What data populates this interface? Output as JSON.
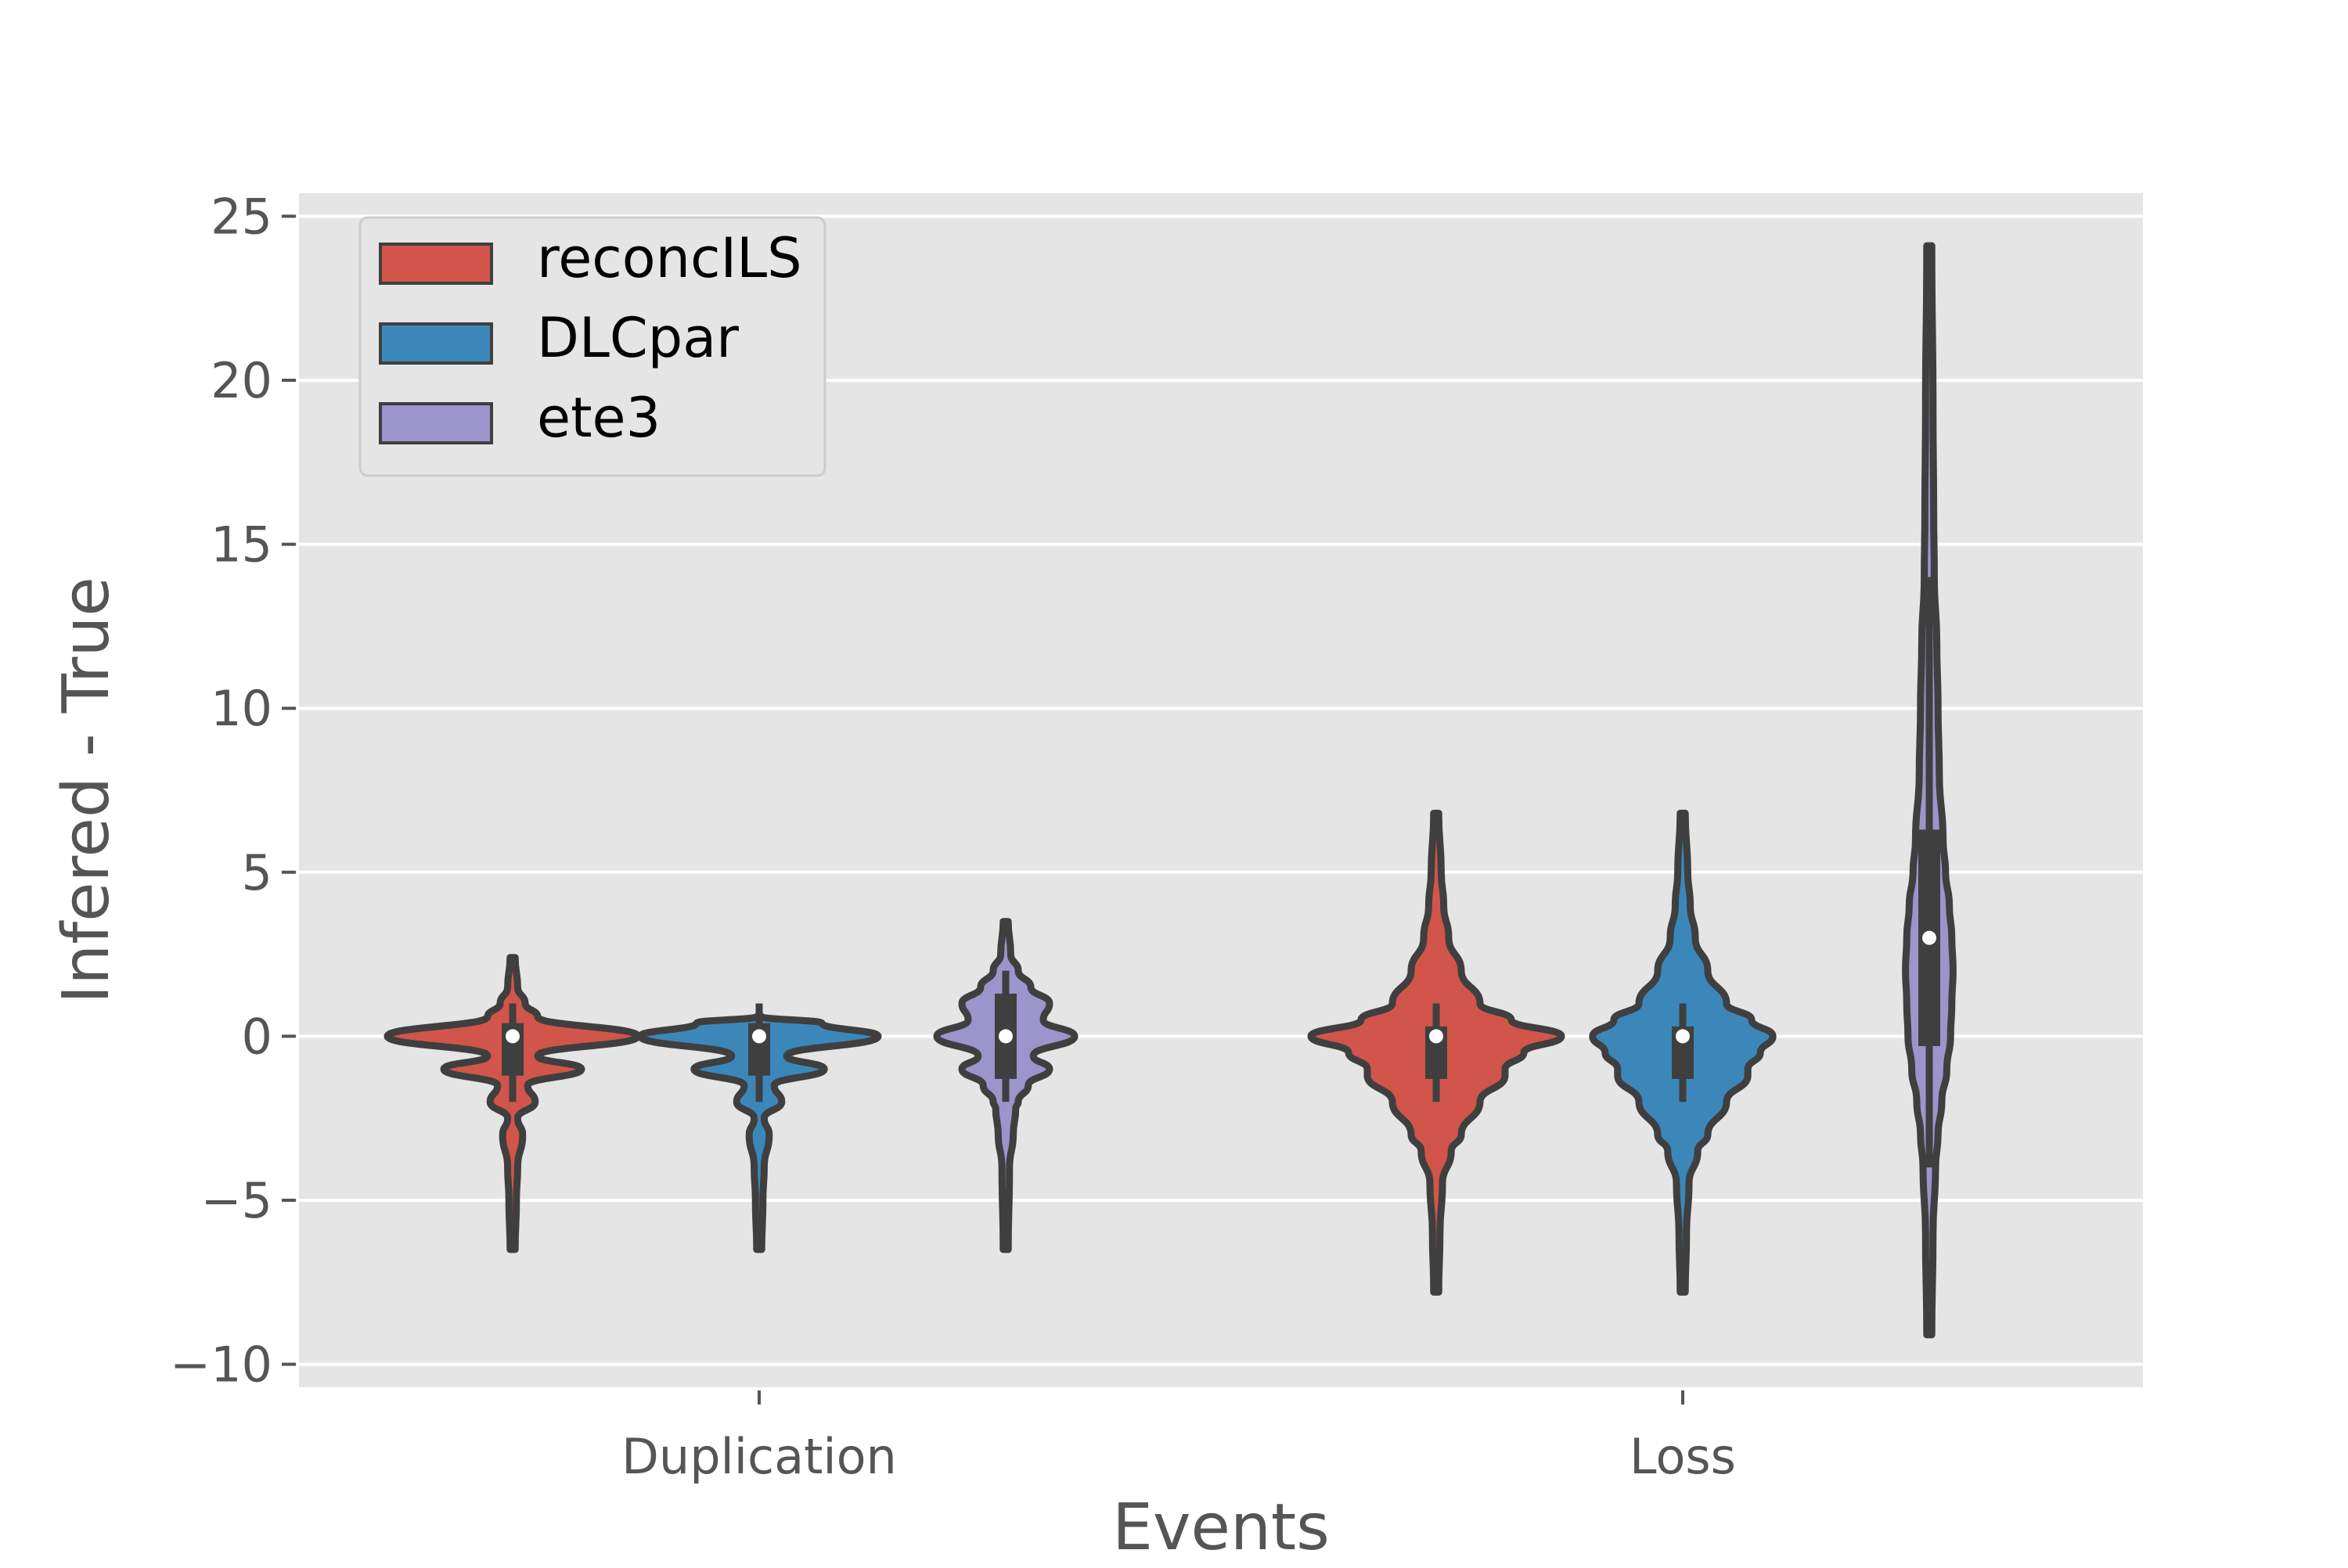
{
  "chart_data": {
    "type": "violin",
    "title": "",
    "xlabel": "Events",
    "ylabel": "Infered - True",
    "categories": [
      "Duplication",
      "Loss"
    ],
    "ylim": [
      -10.7,
      25.7
    ],
    "yticks": [
      25,
      20,
      15,
      10,
      5,
      0,
      -5,
      -10
    ],
    "ytick_labels": [
      "25",
      "20",
      "15",
      "10",
      "5",
      "0",
      "−5",
      "−10"
    ],
    "grid": true,
    "legend_position": "top-left",
    "colors": {
      "background": "#e5e5e5",
      "grid": "#ffffff",
      "outline": "#3f3f3f",
      "tick_text": "#555555"
    },
    "series": [
      {
        "name": "reconcILS",
        "color": "#d1554a",
        "violins": [
          {
            "category": "Duplication",
            "median": 0,
            "q1": -1.2,
            "q3": 0.4,
            "whisker_low": -2,
            "whisker_high": 1,
            "profile": [
              [
                -6.5,
                0.02
              ],
              [
                -5,
                0.03
              ],
              [
                -4,
                0.04
              ],
              [
                -3,
                0.08
              ],
              [
                -2.5,
                0.04
              ],
              [
                -2,
                0.18
              ],
              [
                -1.5,
                0.12
              ],
              [
                -1,
                0.55
              ],
              [
                -0.6,
                0.2
              ],
              [
                0,
                1.0
              ],
              [
                0.6,
                0.2
              ],
              [
                1,
                0.1
              ],
              [
                1.5,
                0.04
              ],
              [
                2.4,
                0.02
              ]
            ]
          },
          {
            "category": "Loss",
            "median": 0,
            "q1": -1.3,
            "q3": 0.3,
            "whisker_low": -2,
            "whisker_high": 1,
            "profile": [
              [
                -7.8,
                0.02
              ],
              [
                -6,
                0.03
              ],
              [
                -4.5,
                0.05
              ],
              [
                -3.5,
                0.12
              ],
              [
                -3,
                0.2
              ],
              [
                -2,
                0.35
              ],
              [
                -1.2,
                0.55
              ],
              [
                -1,
                0.55
              ],
              [
                -0.5,
                0.7
              ],
              [
                0,
                1.0
              ],
              [
                0.5,
                0.6
              ],
              [
                1,
                0.35
              ],
              [
                2,
                0.2
              ],
              [
                3,
                0.1
              ],
              [
                4,
                0.06
              ],
              [
                5,
                0.04
              ],
              [
                6.8,
                0.02
              ]
            ]
          }
        ]
      },
      {
        "name": "DLCpar",
        "color": "#3c87ba",
        "violins": [
          {
            "category": "Duplication",
            "median": 0,
            "q1": -1.2,
            "q3": 0.4,
            "whisker_low": -2,
            "whisker_high": 1,
            "profile": [
              [
                -6.5,
                0.02
              ],
              [
                -5,
                0.03
              ],
              [
                -4,
                0.04
              ],
              [
                -3,
                0.08
              ],
              [
                -2.5,
                0.04
              ],
              [
                -2,
                0.18
              ],
              [
                -1.5,
                0.12
              ],
              [
                -1,
                0.52
              ],
              [
                -0.6,
                0.22
              ],
              [
                0,
                0.95
              ],
              [
                0.4,
                0.5
              ],
              [
                0.6,
                0.02
              ]
            ]
          },
          {
            "category": "Loss",
            "median": 0,
            "q1": -1.3,
            "q3": 0.3,
            "whisker_low": -2,
            "whisker_high": 1,
            "profile": [
              [
                -7.8,
                0.02
              ],
              [
                -6,
                0.03
              ],
              [
                -4.5,
                0.05
              ],
              [
                -3.5,
                0.12
              ],
              [
                -3,
                0.2
              ],
              [
                -2,
                0.35
              ],
              [
                -1.2,
                0.52
              ],
              [
                -1,
                0.52
              ],
              [
                -0.5,
                0.62
              ],
              [
                0,
                0.72
              ],
              [
                0.5,
                0.55
              ],
              [
                1,
                0.35
              ],
              [
                2,
                0.2
              ],
              [
                3,
                0.1
              ],
              [
                4,
                0.06
              ],
              [
                5,
                0.04
              ],
              [
                6.8,
                0.02
              ]
            ]
          }
        ]
      },
      {
        "name": "ete3",
        "color": "#9c95cb",
        "violins": [
          {
            "category": "Duplication",
            "median": 0,
            "q1": -1.3,
            "q3": 1.3,
            "whisker_low": -2,
            "whisker_high": 2,
            "profile": [
              [
                -6.5,
                0.02
              ],
              [
                -4,
                0.03
              ],
              [
                -3,
                0.06
              ],
              [
                -2.2,
                0.08
              ],
              [
                -2,
                0.1
              ],
              [
                -1.5,
                0.18
              ],
              [
                -1,
                0.35
              ],
              [
                -0.6,
                0.22
              ],
              [
                0,
                0.55
              ],
              [
                0.5,
                0.3
              ],
              [
                1,
                0.35
              ],
              [
                1.5,
                0.2
              ],
              [
                2,
                0.1
              ],
              [
                2.5,
                0.04
              ],
              [
                3.5,
                0.02
              ]
            ]
          },
          {
            "category": "Loss",
            "median": 3,
            "q1": -0.3,
            "q3": 6.3,
            "whisker_low": -4,
            "whisker_high": 14,
            "profile": [
              [
                -9.1,
                0.02
              ],
              [
                -6,
                0.03
              ],
              [
                -4,
                0.05
              ],
              [
                -3,
                0.07
              ],
              [
                -2,
                0.1
              ],
              [
                -1,
                0.14
              ],
              [
                0,
                0.17
              ],
              [
                1,
                0.18
              ],
              [
                2,
                0.19
              ],
              [
                3,
                0.18
              ],
              [
                4,
                0.16
              ],
              [
                5,
                0.13
              ],
              [
                6,
                0.11
              ],
              [
                8,
                0.08
              ],
              [
                10,
                0.07
              ],
              [
                12,
                0.06
              ],
              [
                14,
                0.04
              ],
              [
                16,
                0.035
              ],
              [
                19,
                0.03
              ],
              [
                24.1,
                0.02
              ]
            ]
          }
        ]
      }
    ]
  }
}
